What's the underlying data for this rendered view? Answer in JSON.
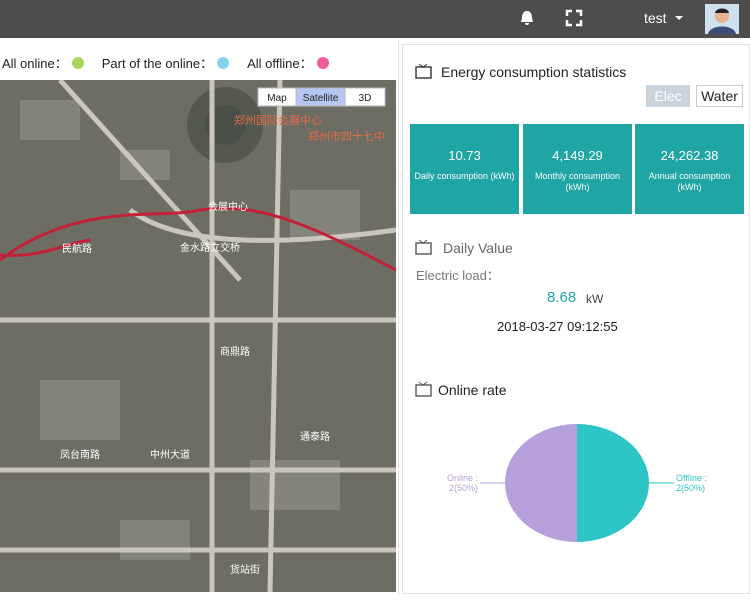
{
  "header": {
    "user": "test"
  },
  "legend": [
    {
      "label": "All online：",
      "color": "#a8d65c"
    },
    {
      "label": "Part of the online：",
      "color": "#7fd3ea"
    },
    {
      "label": "All offline：",
      "color": "#ee5d98"
    }
  ],
  "map": {
    "buttons": [
      "Map",
      "Satellite",
      "3D"
    ],
    "active": 1,
    "places": [
      "郑州国际会展中心",
      "郑州市四十七中",
      "会展中心",
      "金水路立交桥",
      "民航路",
      "中州大道",
      "商鼎路",
      "通泰路",
      "凤台南路",
      "货站街"
    ]
  },
  "energy": {
    "title": "Energy consumption statistics",
    "tabs": [
      "Elec",
      "Water"
    ],
    "cards": [
      {
        "value": "10.73",
        "label": "Daily consumption (kWh)"
      },
      {
        "value": "4,149.29",
        "label": "Monthly consumption (kWh)"
      },
      {
        "value": "24,262.38",
        "label": "Annual consumption (kWh)"
      }
    ]
  },
  "daily": {
    "title": "Daily Value",
    "label": "Electric load：",
    "value": "8.68",
    "unit": "kW",
    "time": "2018-03-27 09:12:55"
  },
  "online_rate": {
    "title": "Online rate",
    "type": "pie",
    "slices": [
      {
        "name": "Online :",
        "value": 50,
        "value_label": "2(50%)",
        "color": "#b6a0dc"
      },
      {
        "name": "Offline :",
        "value": 50,
        "value_label": "2(50%)",
        "color": "#2ec5c6"
      }
    ]
  }
}
